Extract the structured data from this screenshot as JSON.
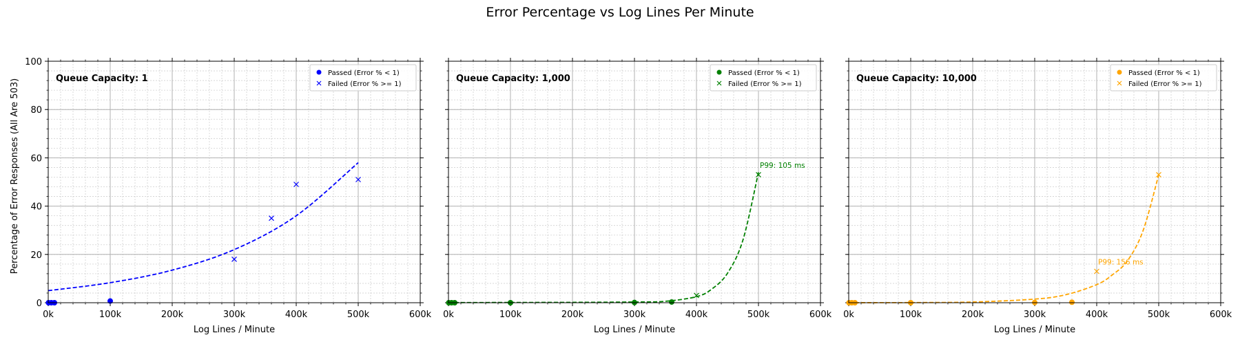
{
  "figure_title": "Error Percentage vs Log Lines Per Minute",
  "ylabel": "Percentage of Error Responses (All Are 503)",
  "chart_data": [
    {
      "type": "scatter",
      "panel_label": "Queue Capacity: 1",
      "xlabel": "Log Lines / Minute",
      "xlim": [
        0,
        600000
      ],
      "ylim": [
        0,
        100
      ],
      "x_ticks": [
        0,
        100000,
        200000,
        300000,
        400000,
        500000,
        600000
      ],
      "x_tick_labels": [
        "0k",
        "100k",
        "200k",
        "300k",
        "400k",
        "500k",
        "600k"
      ],
      "y_ticks": [
        0,
        20,
        40,
        60,
        80,
        100
      ],
      "y_tick_labels": [
        "0",
        "20",
        "40",
        "60",
        "80",
        "100"
      ],
      "grid": true,
      "color": "#0000ff",
      "legend_position": "top-right",
      "series": [
        {
          "name": "Passed (Error % < 1)",
          "marker": "circle",
          "points": [
            [
              500,
              0
            ],
            [
              5000,
              0
            ],
            [
              10000,
              0
            ],
            [
              100000,
              0.7
            ]
          ]
        },
        {
          "name": "Failed (Error % >= 1)",
          "marker": "x",
          "points": [
            [
              300000,
              18
            ],
            [
              360000,
              35
            ],
            [
              400000,
              49
            ],
            [
              500000,
              51
            ]
          ]
        }
      ],
      "fit_curve": {
        "points": [
          [
            0,
            5
          ],
          [
            100000,
            8.3
          ],
          [
            200000,
            13.5
          ],
          [
            300000,
            22
          ],
          [
            400000,
            36
          ],
          [
            500000,
            58
          ]
        ]
      }
    },
    {
      "type": "scatter",
      "panel_label": "Queue Capacity: 1,000",
      "xlabel": "Log Lines / Minute",
      "xlim": [
        0,
        600000
      ],
      "ylim": [
        0,
        100
      ],
      "x_ticks": [
        0,
        100000,
        200000,
        300000,
        400000,
        500000,
        600000
      ],
      "x_tick_labels": [
        "0k",
        "100k",
        "200k",
        "300k",
        "400k",
        "500k",
        "600k"
      ],
      "y_ticks": [
        0,
        20,
        40,
        60,
        80,
        100
      ],
      "grid": true,
      "color": "#008000",
      "legend_position": "top-right",
      "series": [
        {
          "name": "Passed (Error % < 1)",
          "marker": "circle",
          "points": [
            [
              500,
              0
            ],
            [
              5000,
              0
            ],
            [
              10000,
              0
            ],
            [
              100000,
              0
            ],
            [
              300000,
              0.1
            ],
            [
              360000,
              0.3
            ]
          ]
        },
        {
          "name": "Failed (Error % >= 1)",
          "marker": "x",
          "points": [
            [
              400000,
              3
            ],
            [
              500000,
              53
            ]
          ]
        }
      ],
      "fit_curve": {
        "points": [
          [
            0,
            0.05
          ],
          [
            100000,
            0.1
          ],
          [
            200000,
            0.15
          ],
          [
            300000,
            0.3
          ],
          [
            350000,
            0.6
          ],
          [
            400000,
            2.5
          ],
          [
            425000,
            5.7
          ],
          [
            450000,
            12.2
          ],
          [
            475000,
            26
          ],
          [
            500000,
            54
          ]
        ]
      },
      "annotation": {
        "text": "P99: 105 ms",
        "x": 500000,
        "y": 53
      }
    },
    {
      "type": "scatter",
      "panel_label": "Queue Capacity: 10,000",
      "xlabel": "Log Lines / Minute",
      "xlim": [
        0,
        600000
      ],
      "ylim": [
        0,
        100
      ],
      "x_ticks": [
        0,
        100000,
        200000,
        300000,
        400000,
        500000,
        600000
      ],
      "x_tick_labels": [
        "0k",
        "100k",
        "200k",
        "300k",
        "400k",
        "500k",
        "600k"
      ],
      "y_ticks": [
        0,
        20,
        40,
        60,
        80,
        100
      ],
      "grid": true,
      "color": "#ffa500",
      "legend_position": "top-right",
      "series": [
        {
          "name": "Passed (Error % < 1)",
          "marker": "circle",
          "points": [
            [
              500,
              0
            ],
            [
              5000,
              0
            ],
            [
              10000,
              0
            ],
            [
              100000,
              0
            ],
            [
              300000,
              0.1
            ],
            [
              360000,
              0.2
            ]
          ]
        },
        {
          "name": "Failed (Error % >= 1)",
          "marker": "x",
          "points": [
            [
              400000,
              13
            ],
            [
              500000,
              53
            ]
          ]
        }
      ],
      "fit_curve": {
        "points": [
          [
            0,
            0.02
          ],
          [
            100000,
            0.06
          ],
          [
            200000,
            0.3
          ],
          [
            300000,
            1.5
          ],
          [
            350000,
            3.3
          ],
          [
            400000,
            7.5
          ],
          [
            425000,
            11.5
          ],
          [
            450000,
            17.5
          ],
          [
            475000,
            30
          ],
          [
            500000,
            53
          ]
        ]
      },
      "annotation": {
        "text": "P99: 156 ms",
        "x": 400000,
        "y": 13
      }
    }
  ]
}
